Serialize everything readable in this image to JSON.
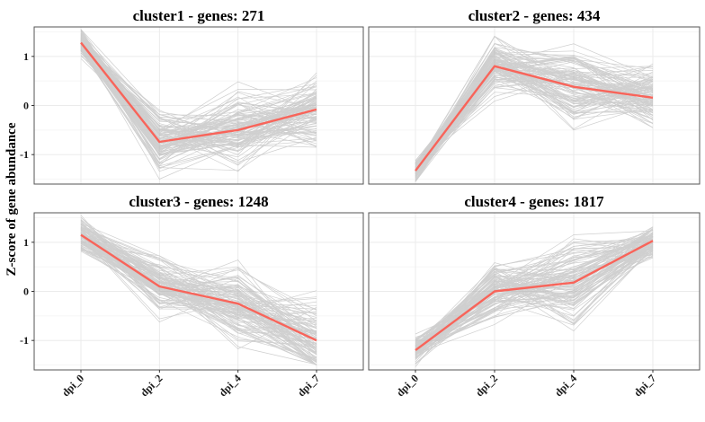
{
  "chart_data": {
    "type": "line",
    "layout": "2x2 facets",
    "ylabel": "Z-score of gene abundance",
    "categories": [
      "dpi_0",
      "dpi_2",
      "dpi_4",
      "dpi_7"
    ],
    "yticks": [
      -1,
      0,
      1
    ],
    "ylim": [
      -1.6,
      1.6
    ],
    "grid": true,
    "colors": {
      "mean_line": "#f8645a",
      "gene_lines": "#a9a9a9",
      "panel_border": "#555555",
      "grid": "#ebebeb"
    },
    "panels": [
      {
        "title": "cluster1 - genes: 271",
        "mean": [
          1.28,
          -0.74,
          -0.5,
          -0.08
        ],
        "envelope_min": [
          0.85,
          -1.5,
          -1.45,
          -0.85
        ],
        "envelope_max": [
          1.55,
          0.15,
          0.6,
          0.85
        ]
      },
      {
        "title": "cluster2 - genes: 434",
        "mean": [
          -1.33,
          0.8,
          0.38,
          0.16
        ],
        "envelope_min": [
          -1.55,
          -0.05,
          -0.5,
          -0.7
        ],
        "envelope_max": [
          -1.0,
          1.45,
          1.45,
          0.85
        ]
      },
      {
        "title": "cluster3 - genes: 1248",
        "mean": [
          1.15,
          0.1,
          -0.25,
          -1.0
        ],
        "envelope_min": [
          0.65,
          -0.75,
          -1.3,
          -1.5
        ],
        "envelope_max": [
          1.55,
          0.85,
          0.85,
          0.2
        ]
      },
      {
        "title": "cluster4 - genes: 1817",
        "mean": [
          -1.2,
          0.0,
          0.18,
          1.03
        ],
        "envelope_min": [
          -1.55,
          -0.7,
          -0.85,
          0.5
        ],
        "envelope_max": [
          -0.8,
          0.8,
          1.35,
          1.55
        ]
      }
    ]
  }
}
